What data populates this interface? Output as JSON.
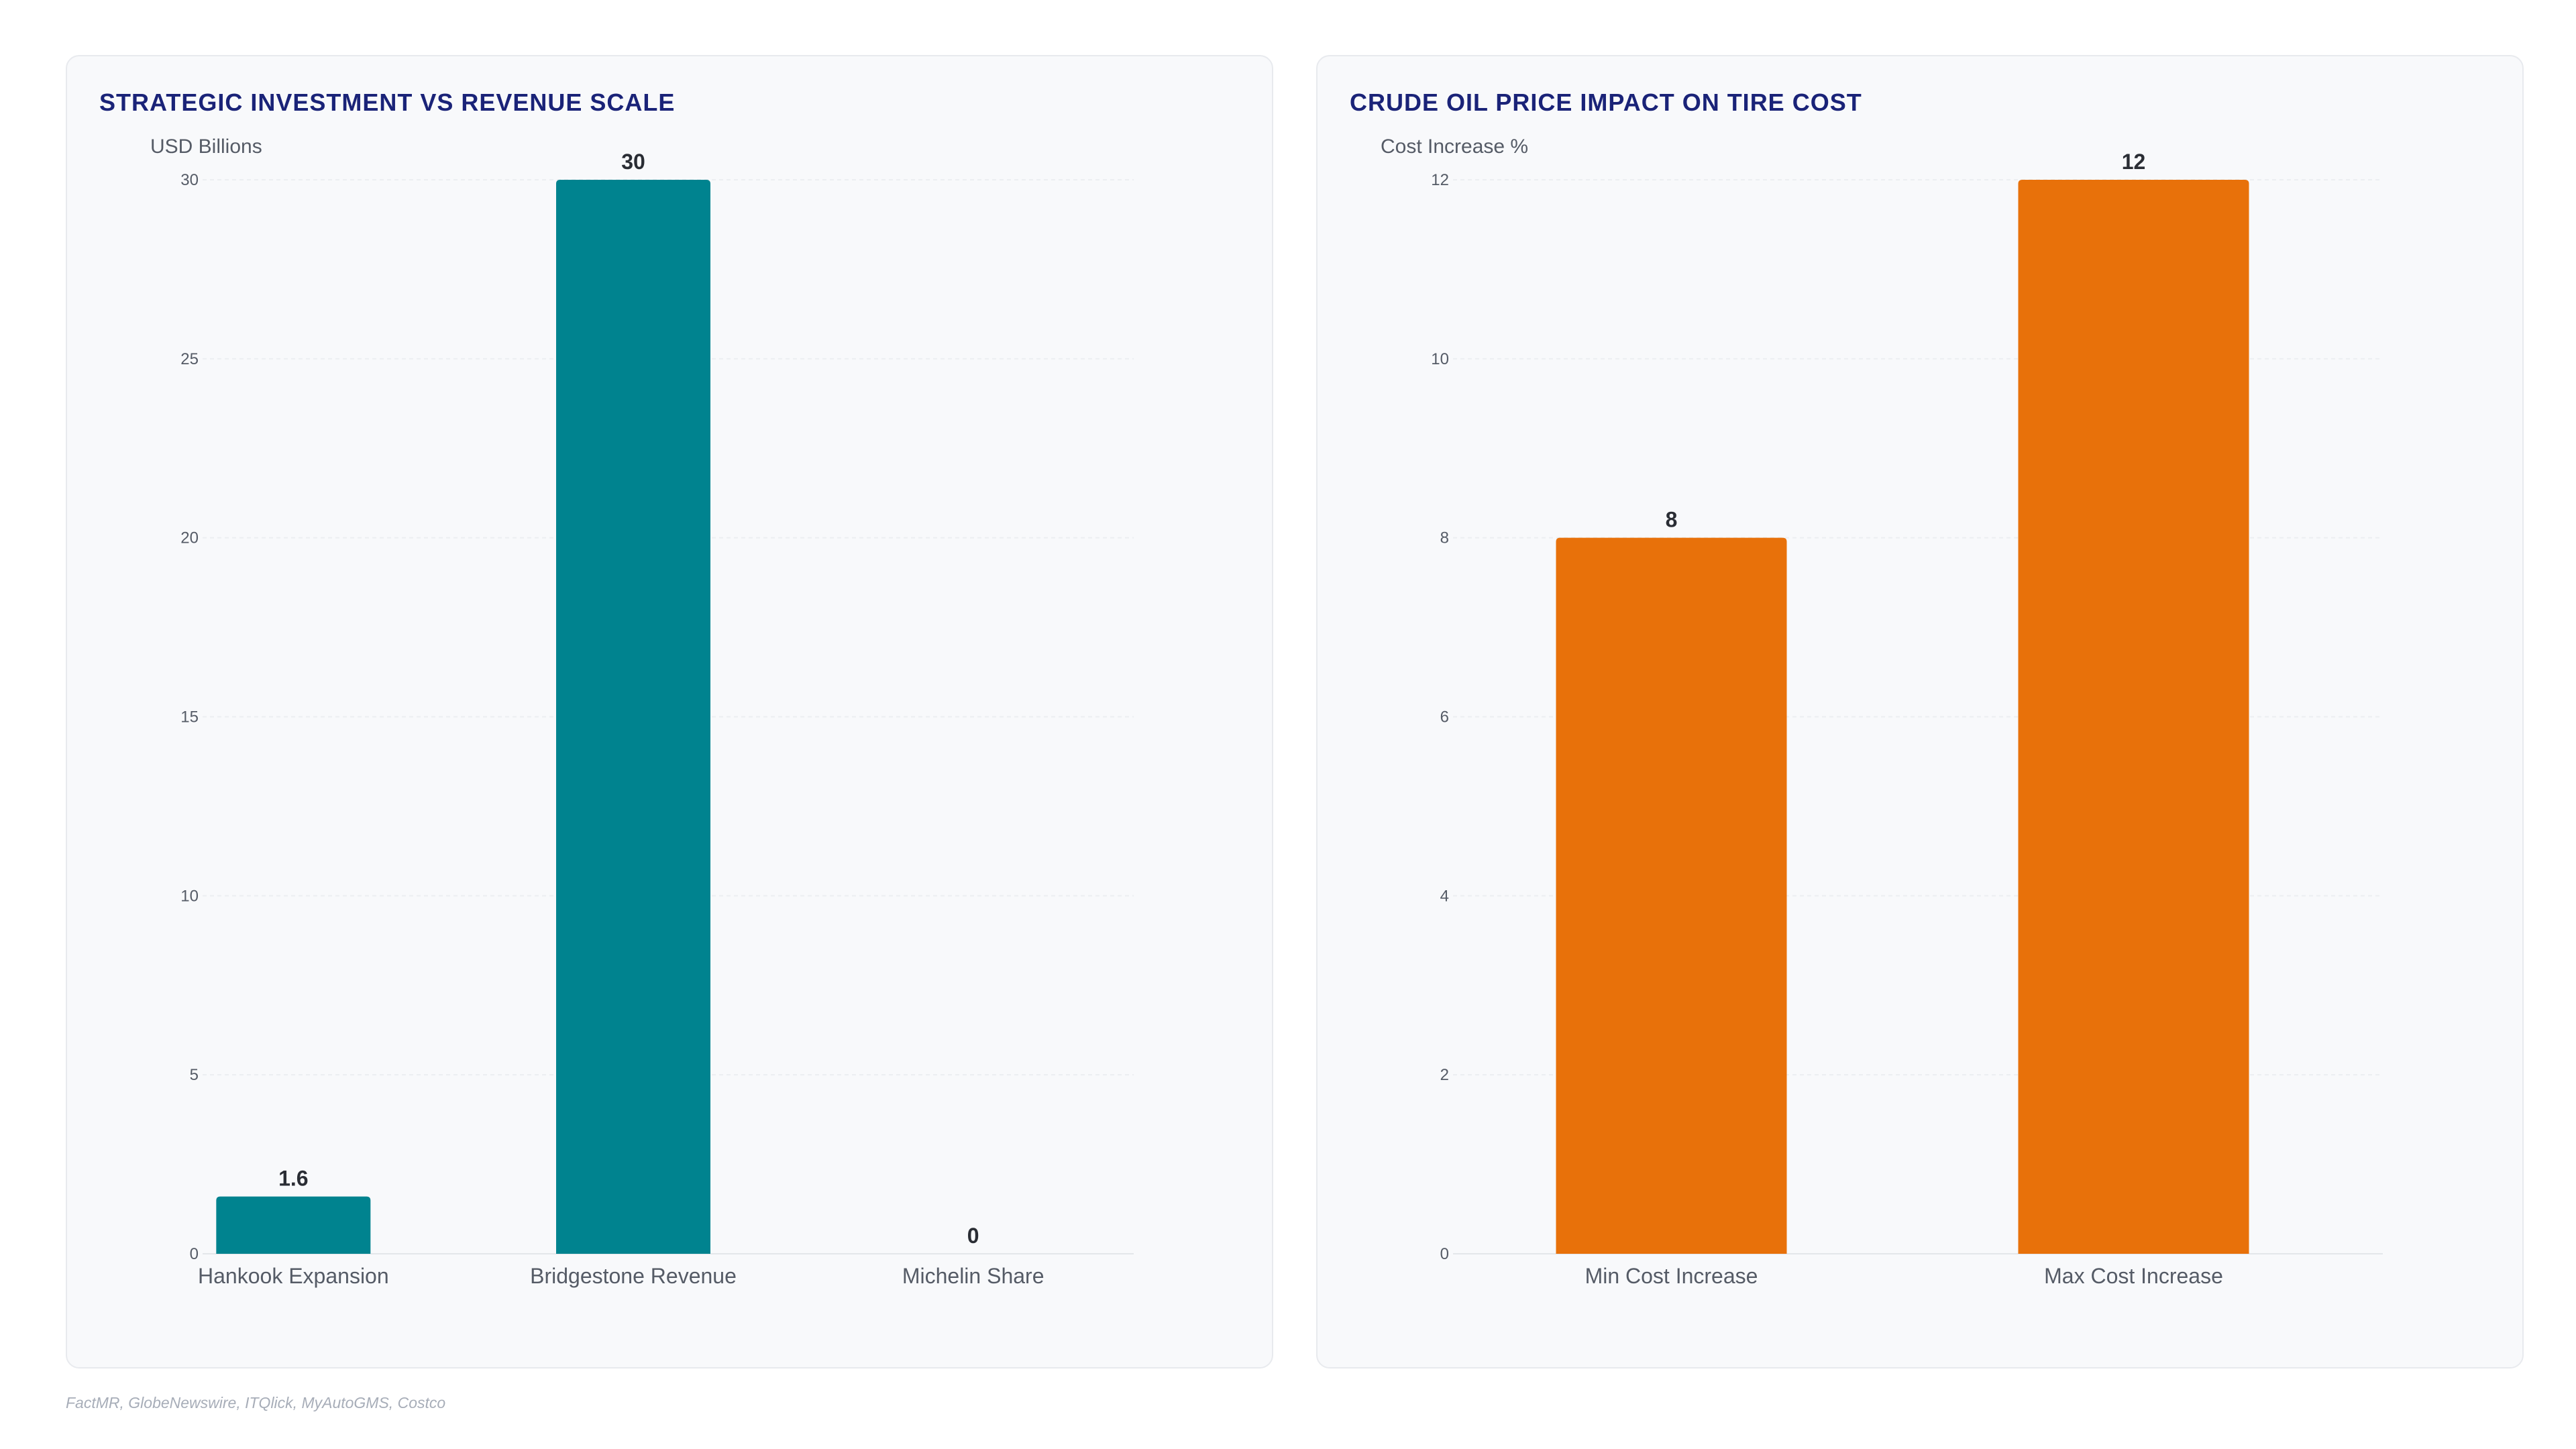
{
  "charts": {
    "left": {
      "title": "STRATEGIC INVESTMENT VS REVENUE SCALE",
      "ylabel": "USD Billions",
      "color": "#00838f"
    },
    "right": {
      "title": "CRUDE OIL PRICE IMPACT ON TIRE COST",
      "ylabel": "Cost Increase %",
      "color": "#e8710a"
    }
  },
  "chart_data": [
    {
      "type": "bar",
      "title": "STRATEGIC INVESTMENT VS REVENUE SCALE",
      "xlabel": "",
      "ylabel": "USD Billions",
      "categories": [
        "Hankook Expansion",
        "Bridgestone Revenue",
        "Michelin Share"
      ],
      "values": [
        1.6,
        30,
        0
      ],
      "value_labels": [
        "1.6",
        "30",
        "0"
      ],
      "yticks": [
        0,
        5,
        10,
        15,
        20,
        25,
        30
      ],
      "ylim": [
        0,
        30
      ],
      "grid": true,
      "legend": "none"
    },
    {
      "type": "bar",
      "title": "CRUDE OIL PRICE IMPACT ON TIRE COST",
      "xlabel": "",
      "ylabel": "Cost Increase %",
      "categories": [
        "Min Cost Increase",
        "Max Cost Increase"
      ],
      "values": [
        8,
        12
      ],
      "value_labels": [
        "8",
        "12"
      ],
      "yticks": [
        0,
        2,
        4,
        6,
        8,
        10,
        12
      ],
      "ylim": [
        0,
        12
      ],
      "grid": true,
      "legend": "none"
    }
  ],
  "footer": {
    "source": "FactMR, GlobeNewswire, ITQlick, MyAutoGMS, Costco"
  }
}
